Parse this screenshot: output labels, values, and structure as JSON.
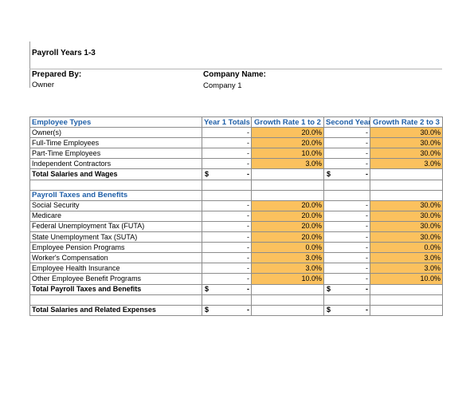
{
  "sheet": {
    "title": "Payroll Years 1-3",
    "prepared_by_label": "Prepared By:",
    "prepared_by_value": "Owner",
    "company_label": "Company Name:",
    "company_value": "Company 1"
  },
  "columns": {
    "label": "Employee Types",
    "year1": "Year 1 Totals",
    "growth12": "Growth Rate 1 to 2",
    "year2": "Second Year",
    "growth23": "Growth Rate 2 to 3"
  },
  "employee_rows": [
    {
      "label": "Owner(s)",
      "year1": "-",
      "growth12": "20.0%",
      "year2": "-",
      "growth23": "30.0%"
    },
    {
      "label": "Full-Time Employees",
      "year1": "-",
      "growth12": "20.0%",
      "year2": "-",
      "growth23": "30.0%"
    },
    {
      "label": "Part-Time Employees",
      "year1": "-",
      "growth12": "10.0%",
      "year2": "-",
      "growth23": "30.0%"
    },
    {
      "label": "Independent Contractors",
      "year1": "-",
      "growth12": "3.0%",
      "year2": "-",
      "growth23": "3.0%"
    }
  ],
  "total_salaries": {
    "label": "Total Salaries and Wages",
    "currency1": "$",
    "year1": "-",
    "currency2": "$",
    "year2": "-"
  },
  "taxes_section": {
    "label": "Payroll Taxes and Benefits"
  },
  "tax_rows": [
    {
      "label": "Social Security",
      "year1": "-",
      "growth12": "20.0%",
      "year2": "-",
      "growth23": "30.0%"
    },
    {
      "label": "Medicare",
      "year1": "-",
      "growth12": "20.0%",
      "year2": "-",
      "growth23": "30.0%"
    },
    {
      "label": "Federal Unemployment Tax (FUTA)",
      "year1": "-",
      "growth12": "20.0%",
      "year2": "-",
      "growth23": "30.0%"
    },
    {
      "label": "State Unemployment Tax (SUTA)",
      "year1": "-",
      "growth12": "20.0%",
      "year2": "-",
      "growth23": "30.0%"
    },
    {
      "label": "Employee Pension Programs",
      "year1": "-",
      "growth12": "0.0%",
      "year2": "-",
      "growth23": "0.0%"
    },
    {
      "label": "Worker's Compensation",
      "year1": "-",
      "growth12": "3.0%",
      "year2": "-",
      "growth23": "3.0%"
    },
    {
      "label": "Employee Health Insurance",
      "year1": "-",
      "growth12": "3.0%",
      "year2": "-",
      "growth23": "3.0%"
    },
    {
      "label": "Other Employee Benefit Programs",
      "year1": "-",
      "growth12": "10.0%",
      "year2": "-",
      "growth23": "10.0%"
    }
  ],
  "total_taxes": {
    "label": "Total Payroll Taxes and Benefits",
    "currency1": "$",
    "year1": "-",
    "currency2": "$",
    "year2": "-"
  },
  "grand_total": {
    "label": "Total Salaries and Related Expenses",
    "currency1": "$",
    "year1": "-",
    "currency2": "$",
    "year2": "-"
  },
  "colors": {
    "accent": "#1f5fa8",
    "input_fill": "#fbc15e",
    "gridline": "#8c8c8c"
  }
}
